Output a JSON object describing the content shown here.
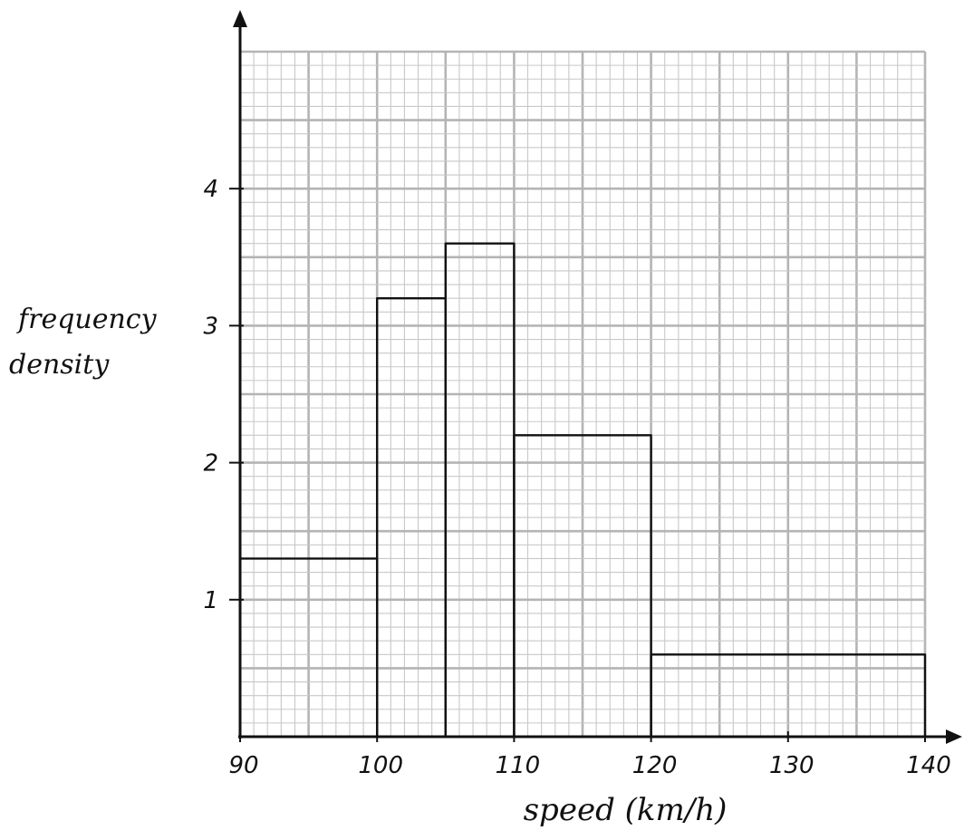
{
  "chart_data": {
    "type": "histogram",
    "title": "",
    "xlabel": "speed (km/h)",
    "ylabel_lines": [
      "frequency",
      "density"
    ],
    "xlim": [
      90,
      140
    ],
    "ylim": [
      0,
      5
    ],
    "x_ticks": [
      90,
      100,
      110,
      120,
      130,
      140
    ],
    "x_tick_labels": [
      "90",
      "100",
      "110",
      "120",
      "130",
      "140"
    ],
    "y_ticks": [
      1,
      2,
      3,
      4
    ],
    "y_tick_labels": [
      "1",
      "2",
      "3",
      "4"
    ],
    "grid": true,
    "minor_grid_step": 1,
    "minor_grid_step_y": 0.1,
    "major_grid_step": 5,
    "major_grid_step_y": 0.5,
    "bars": [
      {
        "x0": 90,
        "x1": 100,
        "value": 1.3
      },
      {
        "x0": 100,
        "x1": 105,
        "value": 3.2
      },
      {
        "x0": 105,
        "x1": 110,
        "value": 3.6
      },
      {
        "x0": 110,
        "x1": 120,
        "value": 2.2
      },
      {
        "x0": 120,
        "x1": 140,
        "value": 0.6
      }
    ],
    "colors": {
      "minor_grid": "#c8c8c8",
      "major_grid": "#b4b4b4",
      "axis": "#111111",
      "bar_stroke": "#111111"
    }
  }
}
